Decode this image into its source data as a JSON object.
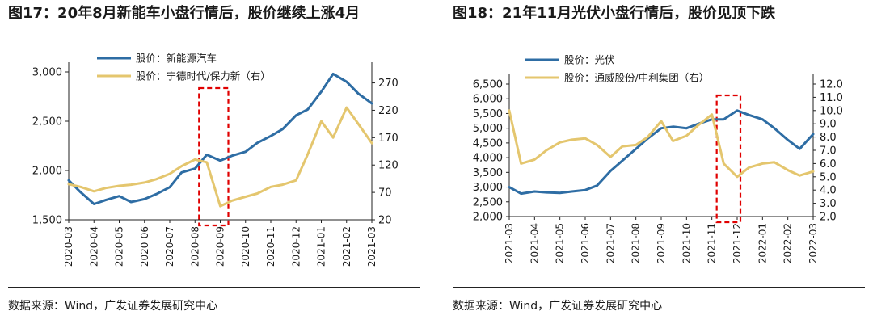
{
  "chart_data": [
    {
      "type": "line",
      "title": "图17：20年8月新能车小盘行情后，股价继续上涨4月",
      "source": "数据来源：Wind，广发证券发展研究中心",
      "x_ticks": [
        "2020-03",
        "2020-04",
        "2020-05",
        "2020-06",
        "2020-07",
        "2020-08",
        "2020-09",
        "2020-10",
        "2020-11",
        "2020-12",
        "2021-01",
        "2021-02",
        "2021-03"
      ],
      "y_left": {
        "ticks": [
          "1,500",
          "2,000",
          "2,500",
          "3,000"
        ],
        "ylim": [
          1500,
          3000
        ]
      },
      "y_right": {
        "ticks": [
          "20",
          "70",
          "120",
          "170",
          "220",
          "270"
        ],
        "ylim": [
          20,
          290
        ]
      },
      "highlight": {
        "from": "2020-08",
        "to": "2020-09",
        "style": "red dashed box"
      },
      "legend_position": "top-left",
      "series": [
        {
          "name": "股价：新能源汽车",
          "axis": "left",
          "color": "#2e6da4",
          "x": [
            "2020-03",
            "2020-03-15",
            "2020-04",
            "2020-04-15",
            "2020-05",
            "2020-05-15",
            "2020-06",
            "2020-06-15",
            "2020-07",
            "2020-07-15",
            "2020-08",
            "2020-08-15",
            "2020-09",
            "2020-09-15",
            "2020-10",
            "2020-10-15",
            "2020-11",
            "2020-11-15",
            "2020-12",
            "2020-12-15",
            "2021-01",
            "2021-01-15",
            "2021-02",
            "2021-02-15",
            "2021-03"
          ],
          "values": [
            1900,
            1780,
            1660,
            1700,
            1740,
            1680,
            1710,
            1760,
            1830,
            1980,
            2020,
            2160,
            2100,
            2150,
            2190,
            2280,
            2350,
            2420,
            2560,
            2620,
            2800,
            2980,
            2900,
            2780,
            2680
          ]
        },
        {
          "name": "股价：宁德时代/保力新（右）",
          "axis": "right",
          "color": "#e4c66e",
          "x": [
            "2020-03",
            "2020-03-15",
            "2020-04",
            "2020-04-15",
            "2020-05",
            "2020-05-15",
            "2020-06",
            "2020-06-15",
            "2020-07",
            "2020-07-15",
            "2020-08",
            "2020-08-15",
            "2020-09",
            "2020-09-15",
            "2020-10",
            "2020-10-15",
            "2020-11",
            "2020-11-15",
            "2020-12",
            "2020-12-15",
            "2021-01",
            "2021-01-15",
            "2021-02",
            "2021-02-15",
            "2021-03"
          ],
          "values": [
            85,
            80,
            72,
            78,
            82,
            84,
            88,
            94,
            104,
            118,
            130,
            125,
            45,
            55,
            62,
            68,
            80,
            84,
            92,
            140,
            200,
            170,
            225,
            195,
            160
          ]
        }
      ]
    },
    {
      "type": "line",
      "title": "图18：21年11月光伏小盘行情后，股价见顶下跌",
      "source": "数据来源：Wind，广发证券发展研究中心",
      "x_ticks": [
        "2021-03",
        "2021-04",
        "2021-05",
        "2021-06",
        "2021-07",
        "2021-08",
        "2021-09",
        "2021-10",
        "2021-11",
        "2021-12",
        "2022-01",
        "2022-02",
        "2022-03"
      ],
      "y_left": {
        "ticks": [
          "2,000",
          "2,500",
          "3,000",
          "3,500",
          "4,000",
          "4,500",
          "5,000",
          "5,500",
          "6,000",
          "6,500"
        ],
        "ylim": [
          2000,
          6500
        ]
      },
      "y_right": {
        "ticks": [
          "2.0",
          "3.0",
          "4.0",
          "5.0",
          "6.0",
          "7.0",
          "8.0",
          "9.0",
          "10.0",
          "11.0",
          "12.0"
        ],
        "ylim": [
          2.0,
          12.0
        ]
      },
      "highlight": {
        "from": "2021-11",
        "to": "2021-12",
        "style": "red dashed box"
      },
      "legend_position": "top-left",
      "series": [
        {
          "name": "股价：光伏",
          "axis": "left",
          "color": "#2e6da4",
          "x": [
            "2021-03",
            "2021-03-15",
            "2021-04",
            "2021-04-15",
            "2021-05",
            "2021-05-15",
            "2021-06",
            "2021-06-15",
            "2021-07",
            "2021-07-15",
            "2021-08",
            "2021-08-15",
            "2021-09",
            "2021-09-15",
            "2021-10",
            "2021-10-15",
            "2021-11",
            "2021-11-15",
            "2021-12",
            "2021-12-15",
            "2022-01",
            "2022-01-15",
            "2022-02",
            "2022-02-15",
            "2022-03"
          ],
          "values": [
            3000,
            2780,
            2850,
            2820,
            2800,
            2850,
            2900,
            3050,
            3550,
            3900,
            4300,
            4650,
            5000,
            5050,
            5000,
            5150,
            5300,
            5300,
            5600,
            5450,
            5300,
            5000,
            4600,
            4300,
            4800
          ]
        },
        {
          "name": "股价：通威股份/中利集团（右）",
          "axis": "right",
          "color": "#e4c66e",
          "x": [
            "2021-03",
            "2021-03-15",
            "2021-04",
            "2021-04-15",
            "2021-05",
            "2021-05-15",
            "2021-06",
            "2021-06-15",
            "2021-07",
            "2021-07-15",
            "2021-08",
            "2021-08-15",
            "2021-09",
            "2021-09-15",
            "2021-10",
            "2021-10-15",
            "2021-11",
            "2021-11-15",
            "2021-12",
            "2021-12-15",
            "2022-01",
            "2022-01-15",
            "2022-02",
            "2022-02-15",
            "2022-03"
          ],
          "values": [
            10.0,
            6.0,
            6.3,
            7.0,
            7.6,
            7.8,
            7.9,
            7.4,
            6.5,
            7.3,
            7.4,
            8.0,
            9.2,
            7.7,
            8.1,
            8.9,
            9.7,
            6.0,
            5.0,
            5.7,
            6.0,
            6.1,
            5.5,
            5.1,
            5.4
          ]
        }
      ]
    }
  ]
}
